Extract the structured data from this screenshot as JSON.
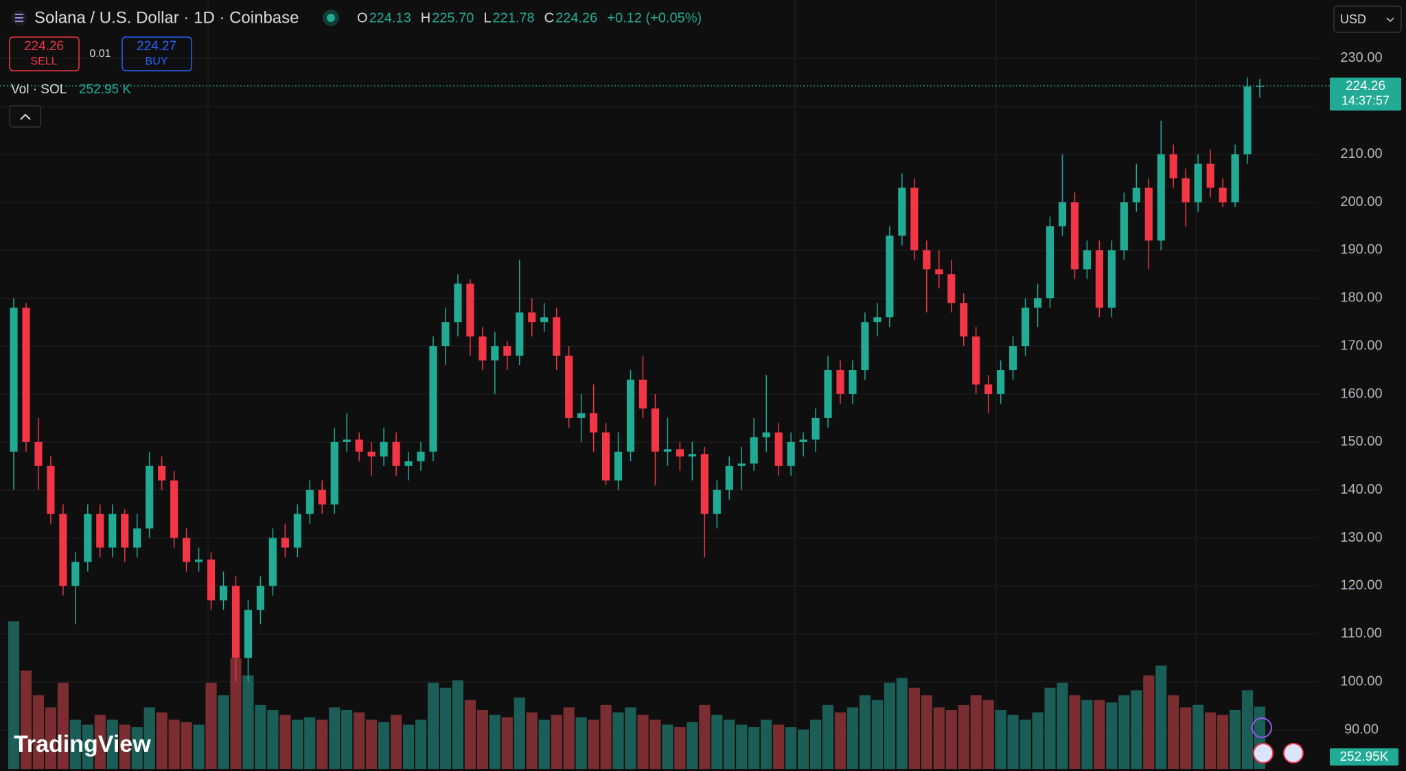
{
  "chart_data": {
    "type": "candlestick",
    "title": "Solana / U.S. Dollar · 1D · Coinbase",
    "ohlc_letters": [
      "O",
      "H",
      "L",
      "C"
    ],
    "last_labels": {
      "open": "224.13",
      "high": "225.70",
      "low": "221.78",
      "close": "224.26"
    },
    "change": "+0.12 (+0.05%)",
    "sell": {
      "price": 224.26,
      "label": "SELL"
    },
    "spread": 0.01,
    "buy": {
      "price": 224.27,
      "label": "BUY"
    },
    "volume_title": "Vol · SOL",
    "volume_header_label": "252.95 K",
    "volume_tag_label": "252.95K",
    "currency": "USD",
    "countdown": "14:37:57",
    "logo": "TradingView",
    "up_color": "#22ab94",
    "down_color": "#f23645",
    "volume_up_color": "#1b5e57",
    "volume_down_color": "#7a2e31",
    "grid": true,
    "ylim": [
      81.85,
      242.15
    ],
    "yticks": [
      {
        "value": 90,
        "label": "90.00"
      },
      {
        "value": 100,
        "label": "100.00"
      },
      {
        "value": 110,
        "label": "110.00"
      },
      {
        "value": 120,
        "label": "120.00"
      },
      {
        "value": 130,
        "label": "130.00"
      },
      {
        "value": 140,
        "label": "140.00"
      },
      {
        "value": 150,
        "label": "150.00"
      },
      {
        "value": 160,
        "label": "160.00"
      },
      {
        "value": 170,
        "label": "170.00"
      },
      {
        "value": 180,
        "label": "180.00"
      },
      {
        "value": 190,
        "label": "190.00"
      },
      {
        "value": 200,
        "label": "200.00"
      },
      {
        "value": 210,
        "label": "210.00"
      },
      {
        "value": 220,
        "label": "220.00"
      },
      {
        "value": 230,
        "label": "230.00"
      }
    ],
    "open": [
      148,
      178,
      150,
      145,
      135,
      120,
      125,
      135,
      128,
      135,
      128,
      132,
      145,
      142,
      130,
      125,
      125.5,
      117,
      120,
      105,
      115,
      120,
      130,
      128,
      135,
      140,
      137,
      150,
      150.5,
      148,
      147,
      150,
      145,
      146,
      148,
      170,
      175,
      183,
      172,
      167,
      170,
      168,
      177,
      175,
      176,
      168,
      155,
      156,
      152,
      142,
      148,
      163,
      157,
      148,
      148.5,
      147,
      147.5,
      135,
      140,
      145,
      145.5,
      151,
      152,
      145,
      150,
      150.5,
      155,
      165,
      160,
      165,
      175,
      176,
      193,
      203,
      190,
      186,
      185,
      179,
      172,
      162,
      160,
      165,
      170,
      178,
      180,
      195,
      200,
      186,
      190,
      178,
      190,
      200,
      203,
      192,
      210,
      205,
      200,
      208,
      203,
      200,
      210,
      224.13
    ],
    "high": [
      180,
      179,
      155,
      147,
      137,
      127,
      137,
      137,
      137,
      136,
      135,
      148,
      147,
      144,
      132,
      128,
      127,
      123,
      122,
      117,
      122,
      132,
      133,
      137,
      142,
      142,
      153,
      156,
      152,
      150,
      153,
      152,
      148,
      150,
      172,
      178,
      185,
      184,
      174,
      173,
      171,
      188,
      180,
      179,
      178,
      170,
      160,
      162,
      154,
      152,
      165,
      168,
      160,
      155,
      150,
      150,
      149,
      142,
      147,
      149,
      155,
      164,
      154,
      152,
      152,
      157,
      168,
      167,
      167,
      177,
      179,
      195,
      206,
      205,
      192,
      190,
      188,
      181,
      174,
      164,
      167,
      172,
      180,
      183,
      197,
      210,
      202,
      192,
      192,
      192,
      202,
      208,
      205,
      217,
      212,
      207,
      210,
      211,
      205,
      212,
      226,
      225.7
    ],
    "low": [
      140,
      148,
      140,
      133,
      118,
      112,
      123,
      126,
      126,
      125,
      126,
      130,
      140,
      128,
      123,
      123,
      115,
      115,
      100,
      100,
      112,
      118,
      126,
      126,
      133,
      135,
      135,
      148,
      146,
      143,
      145,
      143,
      142,
      144,
      146,
      166,
      172,
      168,
      165,
      160,
      165,
      166,
      172,
      173,
      165,
      153,
      150,
      148,
      141,
      140,
      146,
      155,
      141,
      145,
      144,
      142,
      126,
      132,
      138,
      140,
      144,
      148,
      143,
      143,
      147,
      148,
      153,
      158,
      158,
      163,
      172,
      174,
      191,
      188,
      177,
      182,
      177,
      170,
      160,
      156,
      158,
      163,
      168,
      174,
      178,
      193,
      184,
      184,
      176,
      176,
      188,
      198,
      186,
      190,
      203,
      195,
      198,
      201,
      199,
      199,
      208,
      221.78
    ],
    "close": [
      178,
      150,
      145,
      135,
      120,
      125,
      135,
      128,
      135,
      128,
      132,
      145,
      142,
      130,
      125,
      125.5,
      117,
      120,
      105,
      115,
      120,
      130,
      128,
      135,
      140,
      137,
      150,
      150.5,
      148,
      147,
      150,
      145,
      146,
      148,
      170,
      175,
      183,
      172,
      167,
      170,
      168,
      177,
      175,
      176,
      168,
      155,
      156,
      152,
      142,
      148,
      163,
      157,
      148,
      148.5,
      147,
      147.5,
      135,
      140,
      145,
      145.5,
      151,
      152,
      145,
      150,
      150.5,
      155,
      165,
      160,
      165,
      175,
      176,
      193,
      203,
      190,
      186,
      185,
      179,
      172,
      162,
      160,
      165,
      170,
      178,
      180,
      195,
      200,
      186,
      190,
      178,
      190,
      200,
      203,
      192,
      210,
      205,
      200,
      208,
      203,
      200,
      210,
      224.13,
      224.26
    ],
    "volume": [
      600,
      400,
      300,
      250,
      350,
      200,
      180,
      220,
      200,
      180,
      170,
      250,
      230,
      200,
      190,
      180,
      350,
      300,
      450,
      380,
      260,
      240,
      220,
      200,
      210,
      200,
      250,
      240,
      230,
      200,
      190,
      220,
      180,
      200,
      350,
      330,
      360,
      280,
      240,
      220,
      210,
      290,
      230,
      200,
      220,
      250,
      210,
      200,
      260,
      230,
      250,
      220,
      200,
      180,
      170,
      190,
      260,
      220,
      200,
      180,
      170,
      200,
      180,
      170,
      160,
      200,
      260,
      230,
      250,
      300,
      280,
      350,
      370,
      330,
      300,
      250,
      240,
      260,
      300,
      280,
      240,
      220,
      200,
      230,
      330,
      350,
      300,
      280,
      280,
      270,
      300,
      320,
      380,
      420,
      300,
      250,
      260,
      230,
      220,
      240,
      320,
      252.95
    ]
  }
}
